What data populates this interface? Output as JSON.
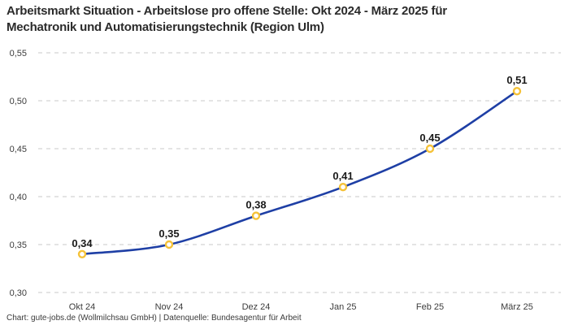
{
  "header": {
    "title_lines": [
      "Arbeitsmarkt Situation - Arbeitslose pro offene Stelle: Okt 2024 - März 2025 für",
      "Mechatronik und Automatisierungstechnik (Region Ulm)"
    ]
  },
  "footer": {
    "credit": "Chart: gute-jobs.de (Wollmilchsau GmbH) | Datenquelle: Bundesagentur für Arbeit"
  },
  "colors": {
    "line": "#1e3fa5",
    "marker_stroke": "#f5c238",
    "marker_fill": "#ffffff",
    "grid": "#c9c9c9",
    "axis_text": "#3c3c3c",
    "point_label_text": "#1a1a1a",
    "title_text": "#2b2b2b"
  },
  "chart_data": {
    "type": "line",
    "title": "Arbeitsmarkt Situation - Arbeitslose pro offene Stelle: Okt 2024 - März 2025 für Mechatronik und Automatisierungstechnik (Region Ulm)",
    "categories": [
      "Okt 24",
      "Nov 24",
      "Dez 24",
      "Jan 25",
      "Feb 25",
      "März 25"
    ],
    "values": [
      0.34,
      0.35,
      0.38,
      0.41,
      0.45,
      0.51
    ],
    "point_labels": [
      "0,34",
      "0,35",
      "0,38",
      "0,41",
      "0,45",
      "0,51"
    ],
    "y_ticks": [
      0.3,
      0.35,
      0.4,
      0.45,
      0.5,
      0.55
    ],
    "y_tick_labels": [
      "0,30",
      "0,35",
      "0,40",
      "0,45",
      "0,50",
      "0,55"
    ],
    "ylim": [
      0.3,
      0.55
    ],
    "xlabel": "",
    "ylabel": "",
    "grid": "horizontal-dashed",
    "legend": "none",
    "curve": "smooth",
    "marker": "open-circle-gold"
  }
}
